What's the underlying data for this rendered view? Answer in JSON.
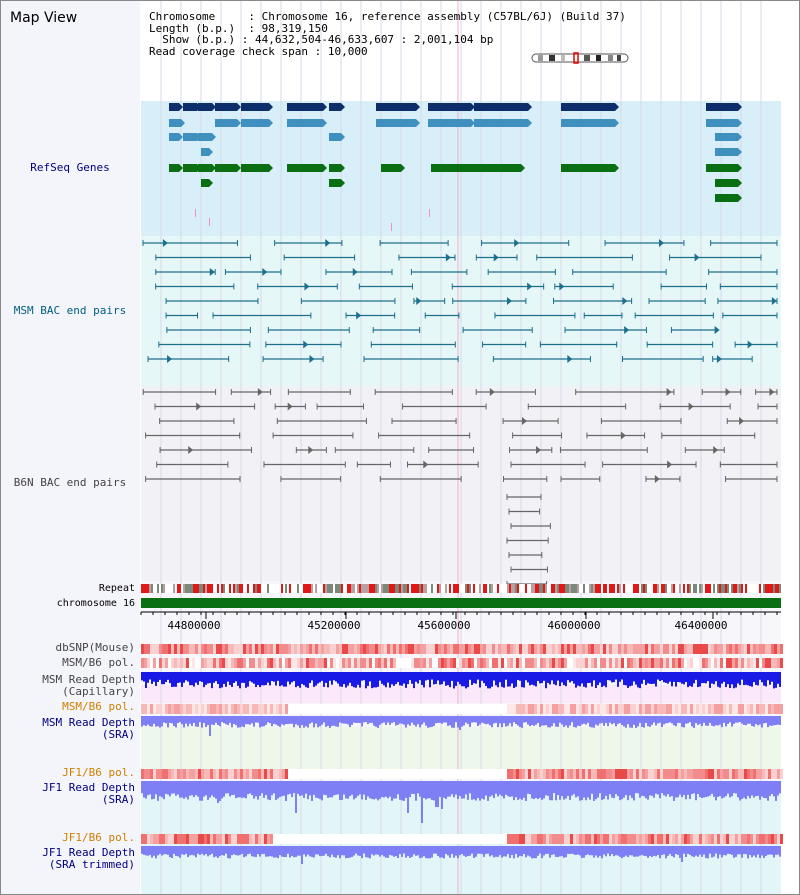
{
  "view_title": "Map View",
  "info": {
    "chromosome_label": "Chromosome",
    "chromosome_value": "Chromosome 16, reference assembly (C57BL/6J) (Build 37)",
    "length_label": "Length (b.p.)",
    "length_value": "98,319,150",
    "show_label": "Show (b.p.)",
    "show_value": "44,632,504-46,633,607 : 2,001,104 bp",
    "coverage_label": "Read coverage check span",
    "coverage_value": "10,000"
  },
  "tracks": {
    "refseq": "RefSeq Genes",
    "msm_bac": "MSM BAC end pairs",
    "b6n_bac": "B6N BAC end pairs",
    "repeat": "Repeat",
    "chrom": "chromosome 16",
    "dbsnp": "dbSNP(Mouse)",
    "msm_pol": "MSM/B6 pol.",
    "msm_depth_cap_1": "MSM Read Depth",
    "msm_depth_cap_2": "(Capillary)",
    "msm_pol_sra": "MSM/B6 pol.",
    "msm_depth_sra_1": "MSM Read Depth",
    "msm_depth_sra_2": "(SRA)",
    "jf1_pol": "JF1/B6 pol.",
    "jf1_depth_1": "JF1 Read Depth",
    "jf1_depth_2": "(SRA)",
    "jf1_pol_trim": "JF1/B6 pol.",
    "jf1_trim_1": "JF1 Read Depth",
    "jf1_trim_2": "(SRA trimmed)"
  },
  "axis": {
    "ticks": [
      "44800000",
      "45200000",
      "45600000",
      "46000000",
      "46400000"
    ]
  },
  "colors": {
    "refseq_dark": "#0d2d6b",
    "refseq_mid": "#3f8fbf",
    "refseq_green": "#0a6e12",
    "msm_bac": "#1d6f8c",
    "b6n_bac": "#666666",
    "chrom_bar": "#0a6e12",
    "depth_blue": "#1a1ae6",
    "depth_light": "#7f7ff5",
    "label_navy": "#000080",
    "label_teal": "#006080",
    "label_orange": "#d08000",
    "label_gray": "#444444"
  }
}
